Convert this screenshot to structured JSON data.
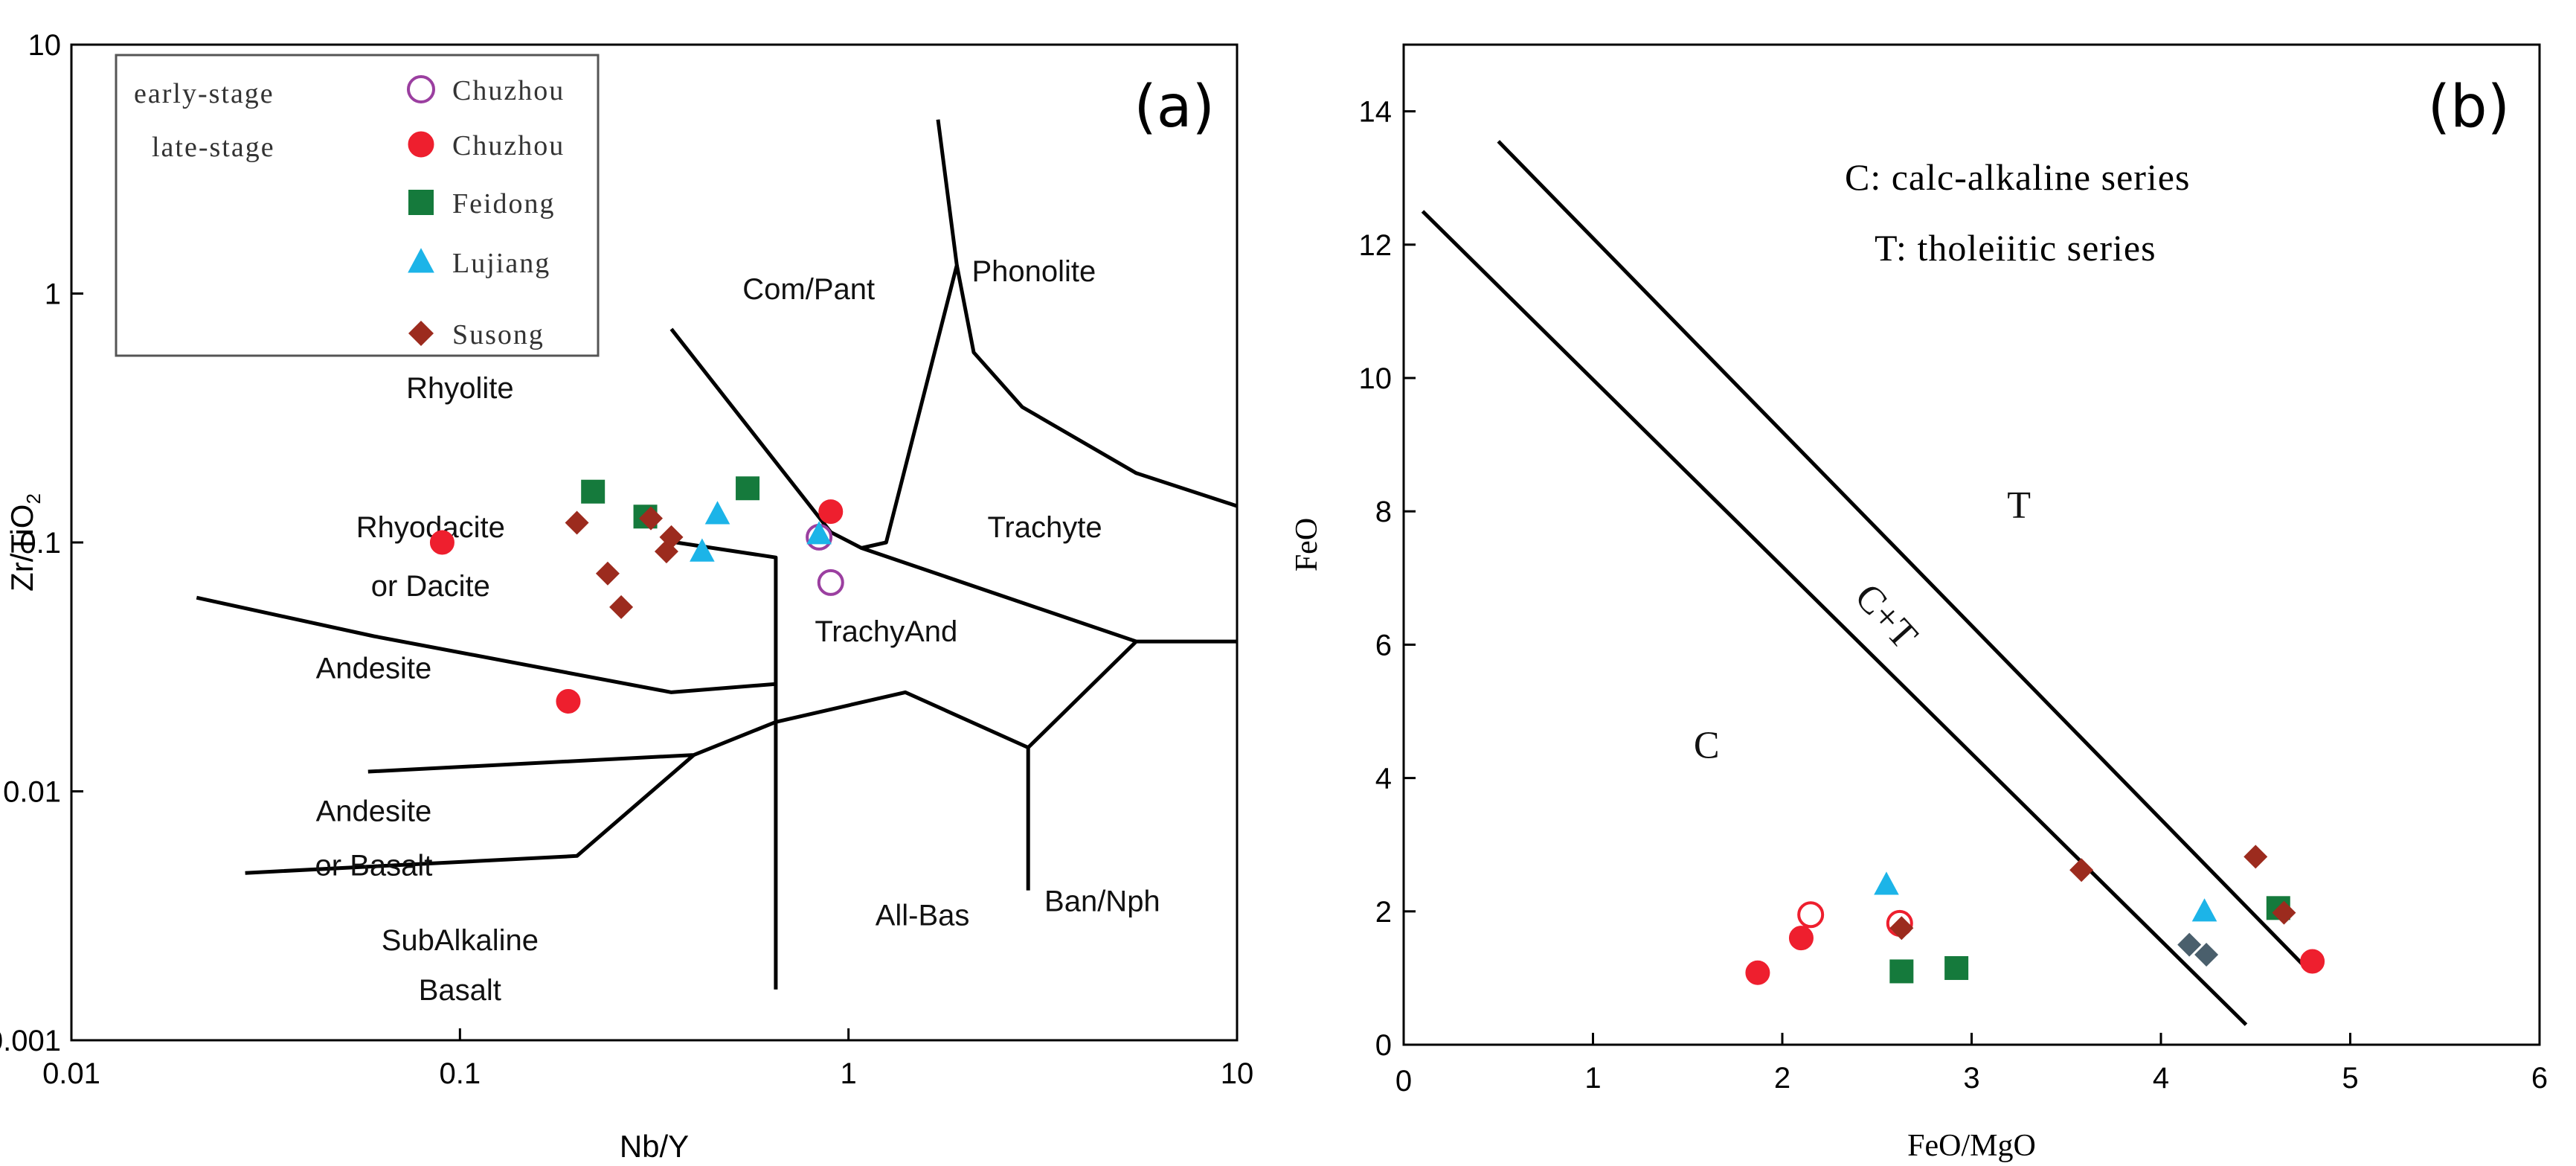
{
  "chart_data": [
    {
      "type": "scatter",
      "panel_label": "(a)",
      "x_scale": "log",
      "y_scale": "log",
      "xlabel": "Nb/Y",
      "ylabel": "Zr/TiO2",
      "xlim": [
        0.01,
        10
      ],
      "ylim": [
        0.001,
        10
      ],
      "x_ticks": [
        "0.01",
        "0.1",
        "1",
        "10"
      ],
      "y_ticks": [
        "0.001",
        "0.01",
        "0.1",
        "1",
        "10"
      ],
      "legend": {
        "placement": "top-left",
        "stage_labels": [
          "early-stage",
          "late-stage"
        ],
        "entries": [
          {
            "label": "Chuzhou",
            "marker": "circle-open",
            "color": "#9b3fa0"
          },
          {
            "label": "Chuzhou",
            "marker": "circle",
            "color": "#ee1f2e"
          },
          {
            "label": "Feidong",
            "marker": "square",
            "color": "#157a3c"
          },
          {
            "label": "Lujiang",
            "marker": "triangle",
            "color": "#1cb4e8"
          },
          {
            "label": "Susong",
            "marker": "diamond",
            "color": "#9c2b1e"
          }
        ]
      },
      "regions": [
        {
          "label": "Com/Pant",
          "x": 0.79,
          "y": 0.95
        },
        {
          "label": "Phonolite",
          "x": 3.0,
          "y": 1.12
        },
        {
          "label": "Rhyolite",
          "x": 0.1,
          "y": 0.38
        },
        {
          "label": "Rhyodacite",
          "x": 0.084,
          "y": 0.105
        },
        {
          "label": "or Dacite",
          "x": 0.084,
          "y": 0.061
        },
        {
          "label": "Trachyte",
          "x": 3.2,
          "y": 0.105
        },
        {
          "label": "TrachyAnd",
          "x": 1.25,
          "y": 0.04
        },
        {
          "label": "Andesite",
          "x": 0.06,
          "y": 0.0285
        },
        {
          "label": "Andesite",
          "x": 0.06,
          "y": 0.0076
        },
        {
          "label": "or Basalt",
          "x": 0.06,
          "y": 0.0046
        },
        {
          "label": "SubAlkaline",
          "x": 0.1,
          "y": 0.0023
        },
        {
          "label": "Basalt",
          "x": 0.1,
          "y": 0.00145
        },
        {
          "label": "All-Bas",
          "x": 1.55,
          "y": 0.0029
        },
        {
          "label": "Ban/Nph",
          "x": 4.5,
          "y": 0.0033
        }
      ],
      "boundaries": [
        [
          [
            0.021,
            0.06
          ],
          [
            0.06,
            0.042
          ],
          [
            0.35,
            0.025
          ],
          [
            0.65,
            0.027
          ]
        ],
        [
          [
            0.058,
            0.012
          ],
          [
            0.4,
            0.014
          ],
          [
            0.65,
            0.019
          ],
          [
            1.4,
            0.025
          ],
          [
            2.9,
            0.015
          ],
          [
            5.5,
            0.04
          ],
          [
            10,
            0.04
          ]
        ],
        [
          [
            0.028,
            0.0047
          ],
          [
            0.2,
            0.0055
          ],
          [
            0.4,
            0.014
          ]
        ],
        [
          [
            0.65,
            0.0016
          ],
          [
            0.65,
            0.087
          ],
          [
            0.36,
            0.1
          ]
        ],
        [
          [
            0.35,
            0.72
          ],
          [
            0.9,
            0.11
          ],
          [
            1.08,
            0.095
          ],
          [
            5.5,
            0.04
          ]
        ],
        [
          [
            1.08,
            0.095
          ],
          [
            1.25,
            0.1
          ],
          [
            1.9,
            1.3
          ],
          [
            1.7,
            5.0
          ]
        ],
        [
          [
            1.9,
            1.3
          ],
          [
            2.1,
            0.58
          ],
          [
            2.8,
            0.35
          ],
          [
            5.5,
            0.19
          ],
          [
            10,
            0.14
          ]
        ],
        [
          [
            2.9,
            0.015
          ],
          [
            2.9,
            0.004
          ]
        ]
      ],
      "series": [
        {
          "name": "early-stage Chuzhou",
          "marker": "circle-open",
          "color": "#9b3fa0",
          "points": [
            [
              0.84,
              0.105
            ],
            [
              0.9,
              0.069
            ]
          ]
        },
        {
          "name": "late-stage Chuzhou",
          "marker": "circle",
          "color": "#ee1f2e",
          "points": [
            [
              0.09,
              0.1
            ],
            [
              0.19,
              0.023
            ],
            [
              0.9,
              0.133
            ]
          ]
        },
        {
          "name": "Feidong",
          "marker": "square",
          "color": "#157a3c",
          "points": [
            [
              0.22,
              0.16
            ],
            [
              0.3,
              0.127
            ],
            [
              0.55,
              0.165
            ]
          ]
        },
        {
          "name": "Lujiang",
          "marker": "triangle",
          "color": "#1cb4e8",
          "points": [
            [
              0.42,
              0.092
            ],
            [
              0.46,
              0.13
            ],
            [
              0.84,
              0.108
            ]
          ]
        },
        {
          "name": "Susong",
          "marker": "diamond",
          "color": "#9c2b1e",
          "points": [
            [
              0.2,
              0.12
            ],
            [
              0.24,
              0.075
            ],
            [
              0.26,
              0.055
            ],
            [
              0.31,
              0.125
            ],
            [
              0.34,
              0.092
            ],
            [
              0.35,
              0.105
            ]
          ]
        }
      ]
    },
    {
      "type": "scatter",
      "panel_label": "(b)",
      "xlabel": "FeO/MgO",
      "ylabel": "FeO",
      "xlim": [
        0,
        6
      ],
      "ylim": [
        0,
        15
      ],
      "x_ticks": [
        "0",
        "1",
        "2",
        "3",
        "4",
        "5",
        "6"
      ],
      "y_ticks": [
        "0",
        "2",
        "4",
        "6",
        "8",
        "10",
        "12",
        "14"
      ],
      "annotations": [
        "C: calc-alkaline series",
        "T: tholeiitic series"
      ],
      "regions": [
        {
          "label": "T",
          "x": 3.25,
          "y": 7.9
        },
        {
          "label": "C+T",
          "x": 2.5,
          "y": 6.3,
          "rotation": -48
        },
        {
          "label": "C",
          "x": 1.6,
          "y": 4.3
        }
      ],
      "boundaries": [
        [
          [
            0.1,
            12.5
          ],
          [
            4.45,
            0.3
          ]
        ],
        [
          [
            0.5,
            13.55
          ],
          [
            4.75,
            1.2
          ]
        ]
      ],
      "series": [
        {
          "name": "early-stage Chuzhou",
          "marker": "circle-open",
          "color": "#ee1f2e",
          "points": [
            [
              2.15,
              1.95
            ],
            [
              2.62,
              1.82
            ]
          ]
        },
        {
          "name": "late-stage Chuzhou",
          "marker": "circle",
          "color": "#ee1f2e",
          "points": [
            [
              1.87,
              1.08
            ],
            [
              2.1,
              1.6
            ],
            [
              4.8,
              1.25
            ]
          ]
        },
        {
          "name": "Feidong",
          "marker": "square",
          "color": "#157a3c",
          "points": [
            [
              2.63,
              1.1
            ],
            [
              2.92,
              1.15
            ],
            [
              4.62,
              2.05
            ]
          ]
        },
        {
          "name": "Lujiang",
          "marker": "triangle",
          "color": "#1cb4e8",
          "points": [
            [
              2.55,
              2.4
            ],
            [
              4.23,
              2.0
            ]
          ]
        },
        {
          "name": "Susong",
          "marker": "diamond",
          "color": "#9c2b1e",
          "points": [
            [
              2.63,
              1.75
            ],
            [
              3.58,
              2.62
            ],
            [
              4.5,
              2.82
            ],
            [
              4.65,
              1.98
            ]
          ]
        },
        {
          "name": "Susong",
          "marker": "diamond",
          "color": "#4a5f6c",
          "points": [
            [
              4.15,
              1.5
            ],
            [
              4.24,
              1.35
            ]
          ]
        }
      ]
    }
  ]
}
